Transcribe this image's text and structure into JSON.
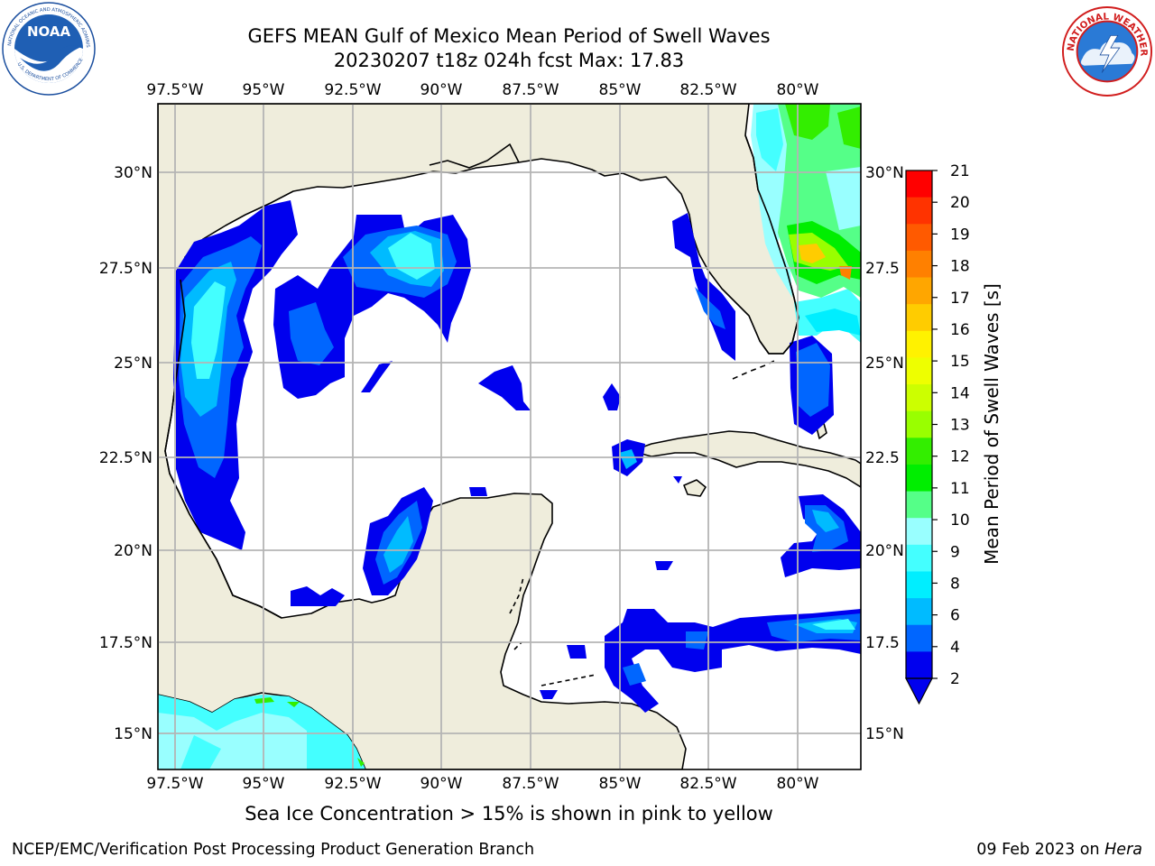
{
  "title": {
    "line1": "GEFS MEAN Gulf of Mexico Mean Period of Swell Waves",
    "line2": "20230207 t18z 024h fcst   Max: 17.83"
  },
  "logos": {
    "left": "noaa-logo",
    "left_text": "NOAA",
    "left_ring": "NATIONAL OCEANIC AND ATMOSPHERIC ADMINISTRATION · U.S. DEPARTMENT OF COMMERCE",
    "right": "nws-logo",
    "right_ring": "NATIONAL WEATHER SERVICE"
  },
  "map": {
    "lon_top": [
      "97.5°W",
      "95°W",
      "92.5°W",
      "90°W",
      "87.5°W",
      "85°W",
      "82.5°W",
      "80°W"
    ],
    "lon_bottom": [
      "97.5°W",
      "95°W",
      "92.5°W",
      "90°W",
      "87.5°W",
      "85°W",
      "82.5°W",
      "80°W"
    ],
    "lat_left": [
      "30°N",
      "27.5°N",
      "25°N",
      "22.5°N",
      "20°N",
      "17.5°N",
      "15°N"
    ],
    "lat_right": [
      "30°N",
      "27.5",
      "25°N",
      "22.5",
      "20°N",
      "17.5",
      "15°N"
    ],
    "land_color": "#efeddc",
    "grid_color": "#b4b4b4"
  },
  "colorbar": {
    "label": "Mean Period of Swell Waves [s]",
    "ticks": [
      "21",
      "20",
      "19",
      "18",
      "17",
      "16",
      "15",
      "14",
      "13",
      "12",
      "11",
      "10",
      "9",
      "8",
      "6",
      "4",
      "2"
    ],
    "colors": [
      "#ff0000",
      "#ff3300",
      "#ff5a00",
      "#ff8000",
      "#ffa600",
      "#ffcc00",
      "#fff200",
      "#eeff00",
      "#ccff00",
      "#99ff00",
      "#33ee00",
      "#00ee00",
      "#55ff88",
      "#99ffff",
      "#44ffff",
      "#00eeff",
      "#00bbff",
      "#0066ff",
      "#0000ee"
    ],
    "extend": "min"
  },
  "note": "Sea Ice Concentration > 15% is shown in pink to yellow",
  "footer": {
    "left": "NCEP/EMC/Verification Post Processing Product Generation Branch",
    "right_date": "09 Feb 2023 on ",
    "right_host": "Hera"
  }
}
